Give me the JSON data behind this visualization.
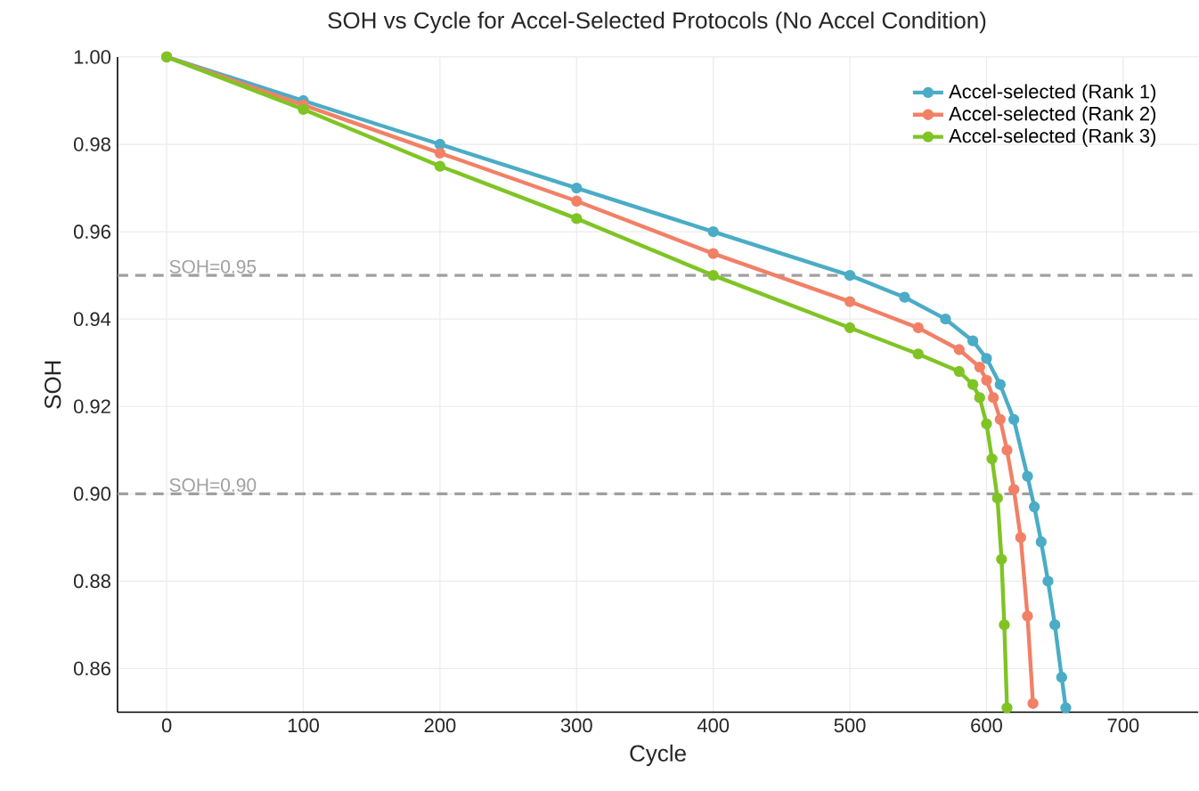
{
  "chart_data": {
    "type": "line",
    "title": "SOH vs Cycle for Accel-Selected Protocols (No Accel Condition)",
    "xlabel": "Cycle",
    "ylabel": "SOH",
    "xlim": [
      -36,
      755
    ],
    "ylim": [
      0.85,
      1.0
    ],
    "xticks": [
      0,
      100,
      200,
      300,
      400,
      500,
      600,
      700
    ],
    "yticks": [
      {
        "value": 0.86,
        "label": "0.86"
      },
      {
        "value": 0.88,
        "label": "0.88"
      },
      {
        "value": 0.9,
        "label": "0.90"
      },
      {
        "value": 0.92,
        "label": "0.92"
      },
      {
        "value": 0.94,
        "label": "0.94"
      },
      {
        "value": 0.96,
        "label": "0.96"
      },
      {
        "value": 0.98,
        "label": "0.98"
      },
      {
        "value": 1.0,
        "label": "1.00"
      }
    ],
    "grid": true,
    "legend": "top right",
    "marker": "circle",
    "line_style": "solid",
    "series": [
      {
        "name": "Accel-selected (Rank 1)",
        "color": "#4bacc6",
        "x": [
          0,
          100,
          200,
          300,
          400,
          500,
          540,
          570,
          590,
          600,
          610,
          620,
          630,
          635,
          640,
          645,
          650,
          655,
          658
        ],
        "values": [
          1.0,
          0.99,
          0.98,
          0.97,
          0.96,
          0.95,
          0.945,
          0.94,
          0.935,
          0.931,
          0.925,
          0.917,
          0.904,
          0.897,
          0.889,
          0.88,
          0.87,
          0.858,
          0.851
        ]
      },
      {
        "name": "Accel-selected (Rank 2)",
        "color": "#f28066",
        "x": [
          0,
          100,
          200,
          300,
          400,
          500,
          550,
          580,
          595,
          600,
          605,
          610,
          615,
          620,
          625,
          630,
          634
        ],
        "values": [
          1.0,
          0.989,
          0.978,
          0.967,
          0.955,
          0.944,
          0.938,
          0.933,
          0.929,
          0.926,
          0.922,
          0.917,
          0.91,
          0.901,
          0.89,
          0.872,
          0.852
        ]
      },
      {
        "name": "Accel-selected (Rank 3)",
        "color": "#7fc424",
        "x": [
          0,
          100,
          200,
          300,
          400,
          500,
          550,
          580,
          590,
          595,
          600,
          604,
          608,
          611,
          613,
          615
        ],
        "values": [
          1.0,
          0.988,
          0.975,
          0.963,
          0.95,
          0.938,
          0.932,
          0.928,
          0.925,
          0.922,
          0.916,
          0.908,
          0.899,
          0.885,
          0.87,
          0.851
        ]
      }
    ],
    "ref_lines": [
      {
        "axis": "y",
        "value": 0.95,
        "label": "SOH=0.95",
        "color": "#a0a0a0",
        "line_style": "dashed"
      },
      {
        "axis": "y",
        "value": 0.9,
        "label": "SOH=0.90",
        "color": "#a0a0a0",
        "line_style": "dashed"
      }
    ]
  }
}
